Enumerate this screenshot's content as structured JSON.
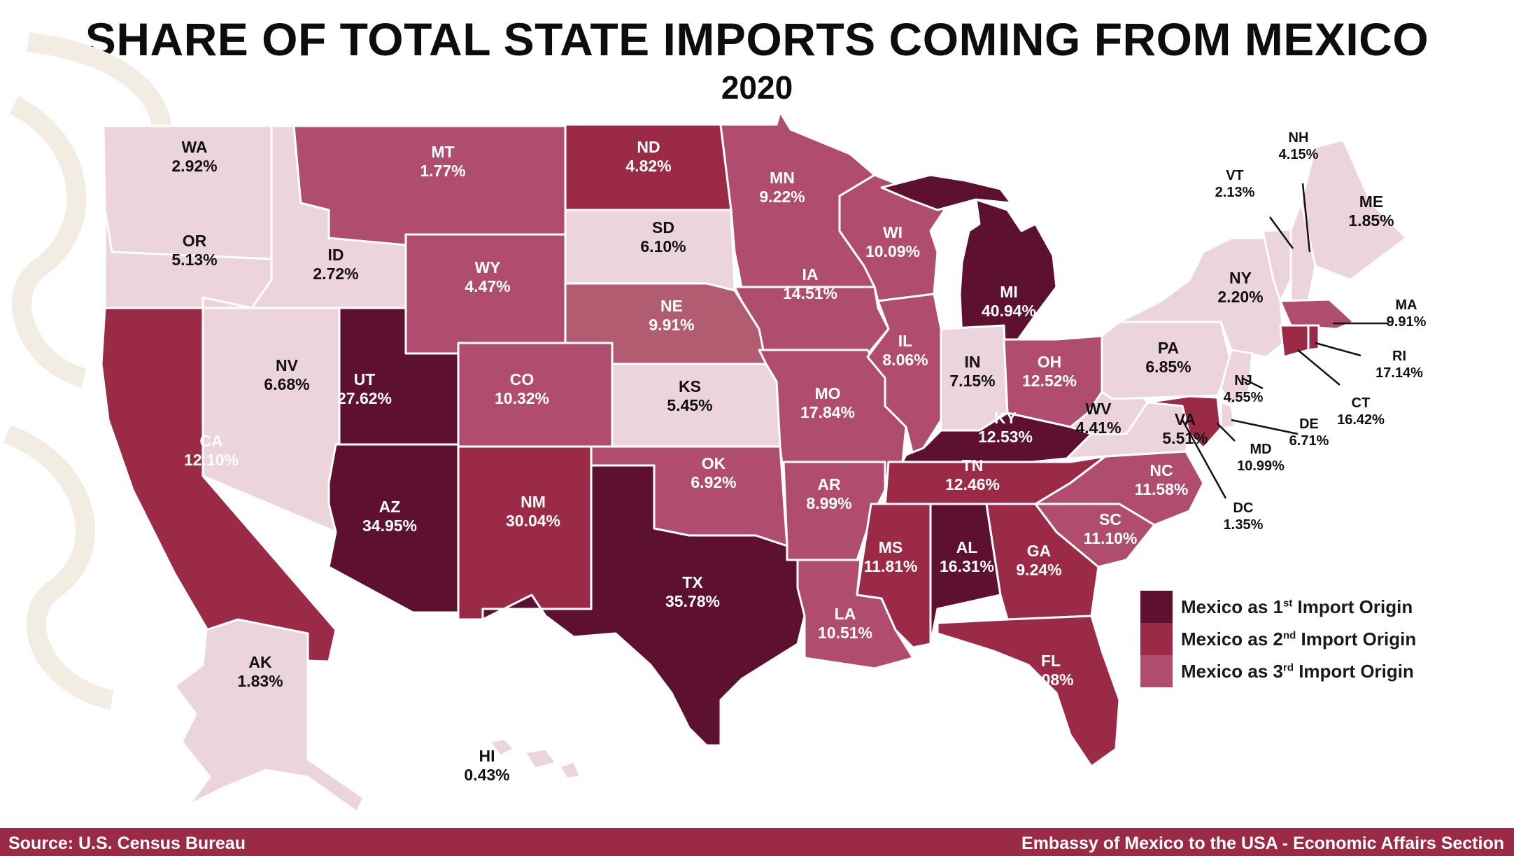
{
  "title": "SHARE OF TOTAL STATE IMPORTS COMING FROM MEXICO",
  "subtitle": "2020",
  "source": "Source: U.S. Census Bureau",
  "credit": "Embassy of Mexico to the USA - Economic Affairs Section",
  "colors": {
    "first": "#5e1030",
    "second": "#9b2a47",
    "third": "#b04d6e",
    "other": "#ecd4dc",
    "ne_fill": "#b25c71"
  },
  "legend": [
    {
      "key": "first",
      "prefix": "Mexico as 1",
      "suffix": "st",
      "rest": " Import Origin"
    },
    {
      "key": "second",
      "prefix": "Mexico as 2",
      "suffix": "nd",
      "rest": " Import Origin"
    },
    {
      "key": "third",
      "prefix": "Mexico as 3",
      "suffix": "rd",
      "rest": " Import Origin"
    }
  ],
  "states": [
    {
      "code": "WA",
      "value": "2.92%",
      "rank": "other"
    },
    {
      "code": "OR",
      "value": "5.13%",
      "rank": "other"
    },
    {
      "code": "CA",
      "value": "12.10%",
      "rank": "second"
    },
    {
      "code": "ID",
      "value": "2.72%",
      "rank": "other"
    },
    {
      "code": "NV",
      "value": "6.68%",
      "rank": "other"
    },
    {
      "code": "MT",
      "value": "1.77%",
      "rank": "third"
    },
    {
      "code": "WY",
      "value": "4.47%",
      "rank": "third"
    },
    {
      "code": "UT",
      "value": "27.62%",
      "rank": "first"
    },
    {
      "code": "AZ",
      "value": "34.95%",
      "rank": "first"
    },
    {
      "code": "CO",
      "value": "10.32%",
      "rank": "third"
    },
    {
      "code": "NM",
      "value": "30.04%",
      "rank": "second"
    },
    {
      "code": "ND",
      "value": "4.82%",
      "rank": "second"
    },
    {
      "code": "SD",
      "value": "6.10%",
      "rank": "other"
    },
    {
      "code": "NE",
      "value": "9.91%",
      "rank": "ne"
    },
    {
      "code": "KS",
      "value": "5.45%",
      "rank": "other"
    },
    {
      "code": "OK",
      "value": "6.92%",
      "rank": "third"
    },
    {
      "code": "TX",
      "value": "35.78%",
      "rank": "first"
    },
    {
      "code": "MN",
      "value": "9.22%",
      "rank": "third"
    },
    {
      "code": "IA",
      "value": "14.51%",
      "rank": "third"
    },
    {
      "code": "MO",
      "value": "17.84%",
      "rank": "third"
    },
    {
      "code": "AR",
      "value": "8.99%",
      "rank": "third"
    },
    {
      "code": "LA",
      "value": "10.51%",
      "rank": "third"
    },
    {
      "code": "WI",
      "value": "10.09%",
      "rank": "third"
    },
    {
      "code": "IL",
      "value": "8.06%",
      "rank": "third"
    },
    {
      "code": "MI",
      "value": "40.94%",
      "rank": "first"
    },
    {
      "code": "IN",
      "value": "7.15%",
      "rank": "other"
    },
    {
      "code": "OH",
      "value": "12.52%",
      "rank": "third"
    },
    {
      "code": "KY",
      "value": "12.53%",
      "rank": "first"
    },
    {
      "code": "TN",
      "value": "12.46%",
      "rank": "second"
    },
    {
      "code": "MS",
      "value": "11.81%",
      "rank": "second"
    },
    {
      "code": "AL",
      "value": "16.31%",
      "rank": "first"
    },
    {
      "code": "GA",
      "value": "9.24%",
      "rank": "second"
    },
    {
      "code": "FL",
      "value": "8.08%",
      "rank": "second"
    },
    {
      "code": "SC",
      "value": "11.10%",
      "rank": "third"
    },
    {
      "code": "NC",
      "value": "11.58%",
      "rank": "third"
    },
    {
      "code": "VA",
      "value": "5.51%",
      "rank": "other"
    },
    {
      "code": "WV",
      "value": "4.41%",
      "rank": "other"
    },
    {
      "code": "PA",
      "value": "6.85%",
      "rank": "other"
    },
    {
      "code": "NY",
      "value": "2.20%",
      "rank": "other"
    },
    {
      "code": "VT",
      "value": "2.13%",
      "rank": "other"
    },
    {
      "code": "NH",
      "value": "4.15%",
      "rank": "other"
    },
    {
      "code": "ME",
      "value": "1.85%",
      "rank": "other"
    },
    {
      "code": "MA",
      "value": "9.91%",
      "rank": "third"
    },
    {
      "code": "RI",
      "value": "17.14%",
      "rank": "second"
    },
    {
      "code": "CT",
      "value": "16.42%",
      "rank": "second"
    },
    {
      "code": "NJ",
      "value": "4.55%",
      "rank": "other"
    },
    {
      "code": "DE",
      "value": "6.71%",
      "rank": "other"
    },
    {
      "code": "MD",
      "value": "10.99%",
      "rank": "second"
    },
    {
      "code": "DC",
      "value": "1.35%",
      "rank": "other"
    },
    {
      "code": "AK",
      "value": "1.83%",
      "rank": "other"
    },
    {
      "code": "HI",
      "value": "0.43%",
      "rank": "other"
    }
  ]
}
